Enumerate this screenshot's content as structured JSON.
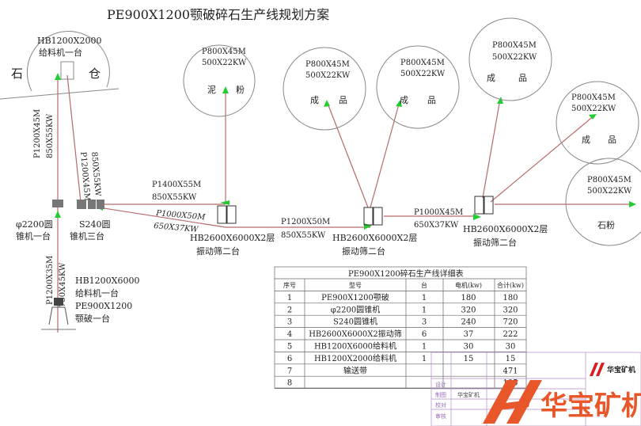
{
  "title": "PE900X1200颚破碎石生产线规划方案",
  "silo": {
    "model": "HB1200X2000",
    "desc": "给料机一台",
    "left": "石",
    "right": "仓"
  },
  "conveyors": {
    "c1": [
      "P1200X45M",
      "850X55KW"
    ],
    "c2": [
      "P1200X45M",
      "850X55KW"
    ],
    "c3": [
      "P1200X35M",
      "750X45KW"
    ],
    "c4": [
      "P1400X55M",
      "850X55KW"
    ],
    "c5": [
      "P1000X50M",
      "650X37KW"
    ],
    "c6": [
      "P1200X50M",
      "850X55KW"
    ],
    "c7": [
      "P1000X45M",
      "650X37KW"
    ]
  },
  "machines": {
    "cone1": [
      "φ2200圆",
      "锥机一台"
    ],
    "cone2": [
      "S240圆",
      "锥机三台"
    ],
    "jaw": [
      "HB1200X6000",
      "给料机一台",
      "PE900X1200",
      "颚破一台"
    ],
    "screen1": [
      "HB2600X6000X2层",
      "振动筛二台"
    ],
    "screen2": [
      "HB2600X6000X2层",
      "振动筛二台"
    ],
    "screen3": [
      "HB2600X6000X2层",
      "振动筛二台"
    ]
  },
  "piles": [
    {
      "l1": "P800X45M",
      "l2": "500X22KW",
      "a": "泥",
      "b": "粉"
    },
    {
      "l1": "P800X45M",
      "l2": "500X22KW",
      "a": "成",
      "b": "品"
    },
    {
      "l1": "P800X45M",
      "l2": "500X22KW",
      "a": "成",
      "b": "品"
    },
    {
      "l1": "P800X45M",
      "l2": "500X22KW",
      "a": "成",
      "b": "品"
    },
    {
      "l1": "P800X45M",
      "l2": "500X22KW",
      "a": "成",
      "b": "品"
    },
    {
      "l1": "P800X45M",
      "l2": "500X22KW",
      "a": "石粉",
      "b": ""
    }
  ],
  "table": {
    "title": "PE900X1200碎石生产线详细表",
    "headers": [
      "序号",
      "型号",
      "台",
      "电机(kw)",
      "合计(kw)"
    ],
    "rows": [
      [
        "1",
        "PE900X1200颚破",
        "1",
        "180",
        "180"
      ],
      [
        "2",
        "φ2200圆锥机",
        "1",
        "320",
        "320"
      ],
      [
        "3",
        "S240圆锥机",
        "3",
        "240",
        "720"
      ],
      [
        "4",
        "HB2600X6000X2振动筛",
        "6",
        "37",
        "222"
      ],
      [
        "5",
        "HB1200X6000给料机",
        "1",
        "30",
        "30"
      ],
      [
        "6",
        "HB1200X2000给料机",
        "1",
        "15",
        "15"
      ],
      [
        "7",
        "输送带",
        "",
        "",
        "471"
      ],
      [
        "8",
        "",
        "",
        "",
        "195"
      ]
    ]
  },
  "titleblock": {
    "company": "华宝矿机",
    "cells": [
      "设计",
      "制图",
      "校对",
      "审核"
    ]
  },
  "logo": {
    "text": "华宝矿机",
    "color": "#e8572a"
  },
  "colors": {
    "line": "#b86a6a",
    "arrow": "#22cc33"
  }
}
